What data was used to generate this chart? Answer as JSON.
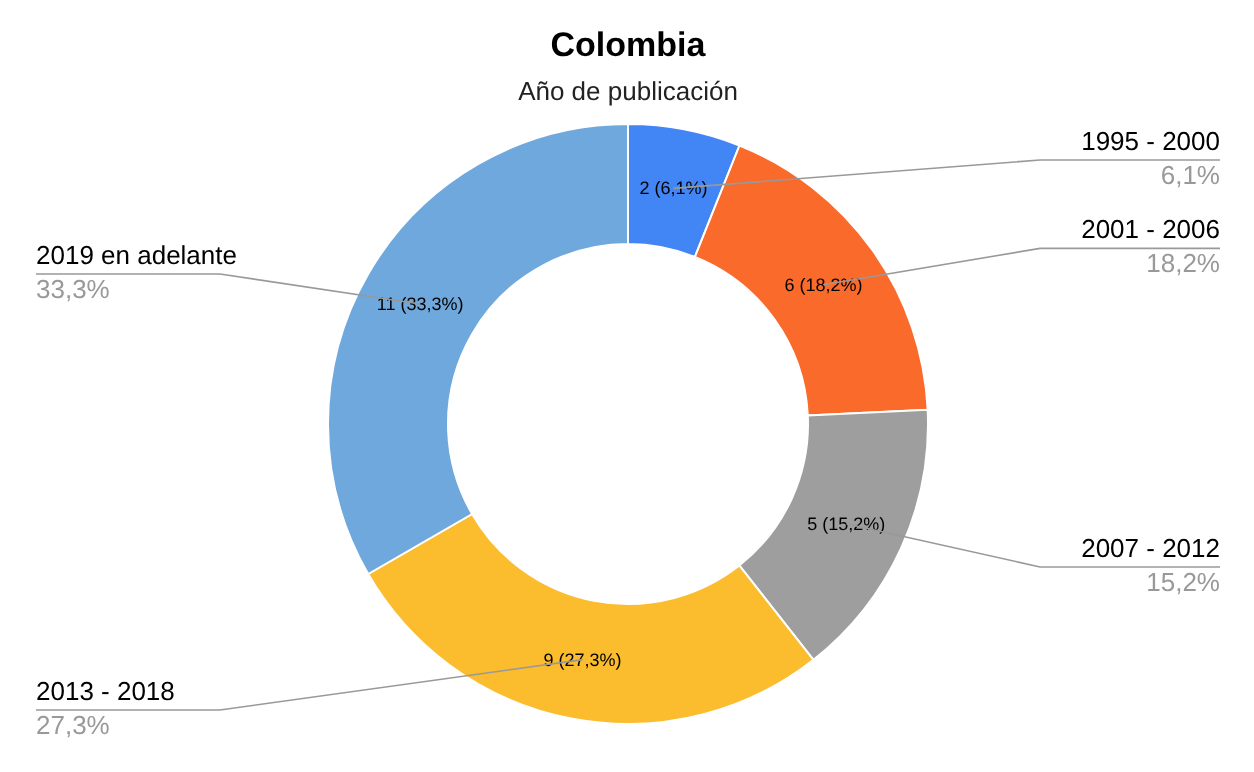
{
  "chart_data": {
    "type": "donut",
    "title": "Colombia",
    "subtitle": "Año de publicación",
    "categories": [
      "1995 - 2000",
      "2001 - 2006",
      "2007 - 2012",
      "2013 - 2018",
      "2019 en adelante"
    ],
    "values": [
      2,
      6,
      5,
      9,
      11
    ],
    "colors": [
      "#4285f4",
      "#fa6a2b",
      "#9e9e9e",
      "#fbbc2d",
      "#6fa8dc"
    ],
    "value_labels": [
      "2 (6,1%)",
      "6 (18,2%)",
      "5 (15,2%)",
      "9 (27,3%)",
      "11 (33,3%)"
    ],
    "annotations": [
      "6,1%",
      "18,2%",
      "15,2%",
      "27,3%",
      "33,3%"
    ]
  }
}
